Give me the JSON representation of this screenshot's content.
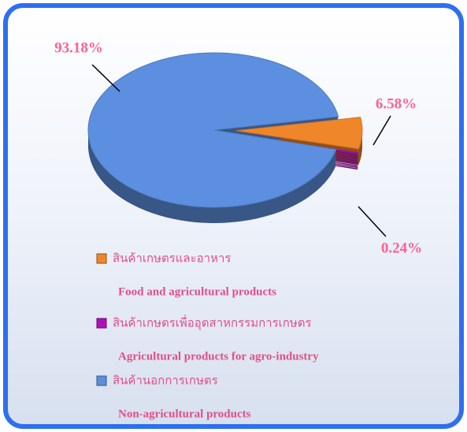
{
  "chart_data": {
    "type": "pie",
    "categories": [
      "สินค้าเกษตรและอาหาร",
      "สินค้าเกษตรเพื่ออุตสาหกรรมการเกษตร",
      "สินค้านอกการเกษตร"
    ],
    "categories_en": [
      "Food and agricultural products",
      "Agricultural products for agro-industry",
      "Non-agricultural products"
    ],
    "values": [
      6.58,
      0.24,
      93.18
    ],
    "value_labels": [
      "6.58%",
      "0.24%",
      "93.18%"
    ],
    "colors": [
      "#f0862a",
      "#b010b8",
      "#5d8fe0"
    ]
  }
}
